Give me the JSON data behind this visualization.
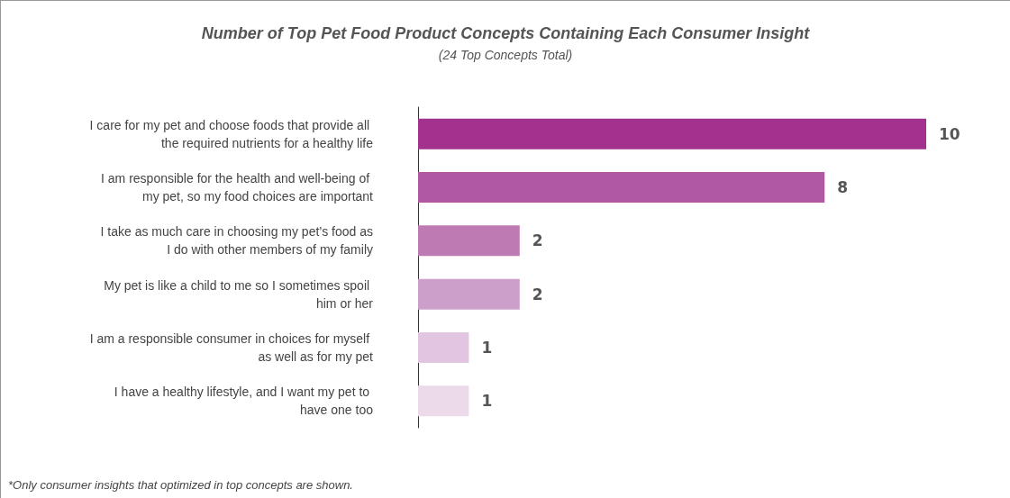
{
  "chart_data": {
    "type": "bar",
    "orientation": "horizontal",
    "title": "Number of Top Pet Food Product Concepts Containing Each Consumer Insight",
    "subtitle": "(24 Top Concepts Total)",
    "categories": [
      "I care for my pet and choose foods that provide all the required nutrients for a healthy life",
      "I am responsible for the health and well-being of my pet, so my food choices are important",
      "I take as much care in choosing my pet’s food as I do with other members of my family",
      "My pet is like a child to me so I sometimes spoil him or her",
      "I am a responsible consumer in choices for myself as well as for my pet",
      "I have a healthy lifestyle, and I want my pet to have one too"
    ],
    "values": [
      10,
      8,
      2,
      2,
      1,
      1
    ],
    "colors": [
      "#a3328f",
      "#b058a2",
      "#be7bb3",
      "#cc9fca",
      "#e2c5e0",
      "#ecdaeb"
    ],
    "data_labels": true,
    "annotations": [
      "*Only consumer insights that optimized in top concepts are shown."
    ]
  }
}
